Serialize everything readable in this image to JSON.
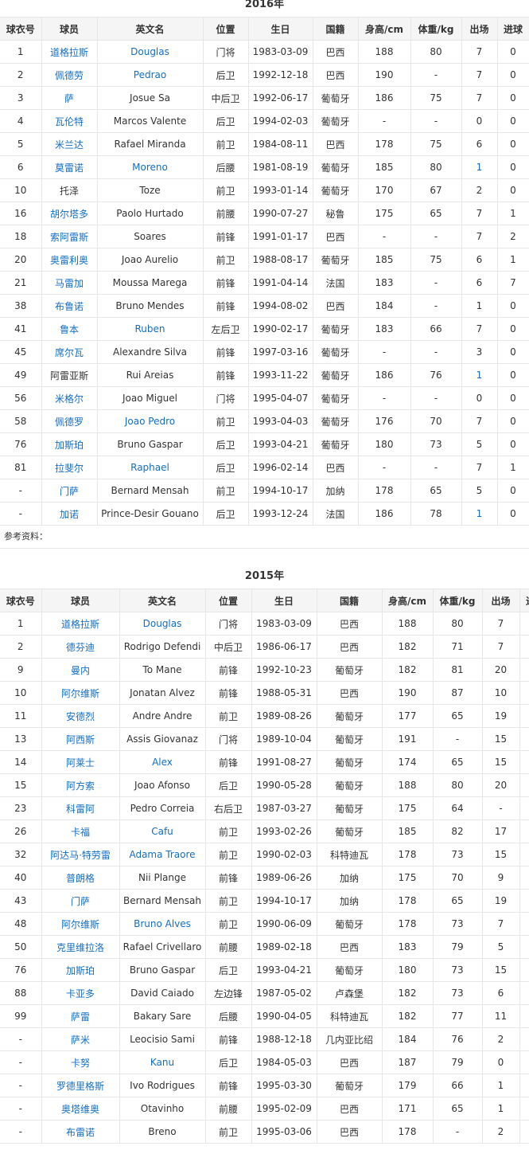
{
  "headers": [
    "球衣号",
    "球员",
    "英文名",
    "位置",
    "生日",
    "国籍",
    "身高/cm",
    "体重/kg",
    "出场",
    "进球"
  ],
  "colors": {
    "link": "#136ec2",
    "text": "#333333",
    "header_bg": "#f5f5f5",
    "border": "#e6e6e6"
  },
  "reference_label": "参考资料：",
  "table2016": {
    "title": "2016年",
    "rows": [
      {
        "cells": [
          "1",
          "道格拉斯",
          "Douglas",
          "门将",
          "1983-03-09",
          "巴西",
          "188",
          "80",
          "7",
          "0"
        ],
        "links": [
          1,
          2
        ]
      },
      {
        "cells": [
          "2",
          "佩德劳",
          "Pedrao",
          "后卫",
          "1992-12-18",
          "巴西",
          "190",
          "-",
          "7",
          "0"
        ],
        "links": [
          1,
          2
        ]
      },
      {
        "cells": [
          "3",
          "萨",
          "Josue Sa",
          "中后卫",
          "1992-06-17",
          "葡萄牙",
          "186",
          "75",
          "7",
          "0"
        ],
        "links": [
          1
        ]
      },
      {
        "cells": [
          "4",
          "瓦伦特",
          "Marcos Valente",
          "后卫",
          "1994-02-03",
          "葡萄牙",
          "-",
          "-",
          "0",
          "0"
        ],
        "links": [
          1
        ]
      },
      {
        "cells": [
          "5",
          "米兰达",
          "Rafael Miranda",
          "前卫",
          "1984-08-11",
          "巴西",
          "178",
          "75",
          "6",
          "0"
        ],
        "links": [
          1
        ]
      },
      {
        "cells": [
          "6",
          "莫雷诺",
          "Moreno",
          "后腰",
          "1981-08-19",
          "葡萄牙",
          "185",
          "80",
          "1",
          "0"
        ],
        "links": [
          1,
          2,
          8
        ]
      },
      {
        "cells": [
          "10",
          "托泽",
          "Toze",
          "前卫",
          "1993-01-14",
          "葡萄牙",
          "170",
          "67",
          "2",
          "0"
        ],
        "links": []
      },
      {
        "cells": [
          "16",
          "胡尔塔多",
          "Paolo Hurtado",
          "前腰",
          "1990-07-27",
          "秘鲁",
          "175",
          "65",
          "7",
          "1"
        ],
        "links": [
          1
        ]
      },
      {
        "cells": [
          "18",
          "索阿雷斯",
          "Soares",
          "前锋",
          "1991-01-17",
          "巴西",
          "-",
          "-",
          "7",
          "2"
        ],
        "links": [
          1
        ]
      },
      {
        "cells": [
          "20",
          "奥雷利奥",
          "Joao Aurelio",
          "前卫",
          "1988-08-17",
          "葡萄牙",
          "185",
          "75",
          "6",
          "1"
        ],
        "links": [
          1
        ]
      },
      {
        "cells": [
          "21",
          "马雷加",
          "Moussa Marega",
          "前锋",
          "1991-04-14",
          "法国",
          "183",
          "-",
          "6",
          "7"
        ],
        "links": [
          1
        ]
      },
      {
        "cells": [
          "38",
          "布鲁诺",
          "Bruno Mendes",
          "前锋",
          "1994-08-02",
          "巴西",
          "184",
          "-",
          "1",
          "0"
        ],
        "links": [
          1
        ]
      },
      {
        "cells": [
          "41",
          "鲁本",
          "Ruben",
          "左后卫",
          "1990-02-17",
          "葡萄牙",
          "183",
          "66",
          "7",
          "0"
        ],
        "links": [
          1,
          2
        ]
      },
      {
        "cells": [
          "45",
          "席尔瓦",
          "Alexandre Silva",
          "前锋",
          "1997-03-16",
          "葡萄牙",
          "-",
          "-",
          "3",
          "0"
        ],
        "links": [
          1
        ]
      },
      {
        "cells": [
          "49",
          "阿雷亚斯",
          "Rui Areias",
          "前锋",
          "1993-11-22",
          "葡萄牙",
          "186",
          "76",
          "1",
          "0"
        ],
        "links": [
          8
        ]
      },
      {
        "cells": [
          "56",
          "米格尔",
          "Joao Miguel",
          "门将",
          "1995-04-07",
          "葡萄牙",
          "-",
          "-",
          "0",
          "0"
        ],
        "links": [
          1
        ]
      },
      {
        "cells": [
          "58",
          "佩德罗",
          "Joao Pedro",
          "前卫",
          "1993-04-03",
          "葡萄牙",
          "176",
          "70",
          "7",
          "0"
        ],
        "links": [
          1,
          2
        ]
      },
      {
        "cells": [
          "76",
          "加斯珀",
          "Bruno Gaspar",
          "后卫",
          "1993-04-21",
          "葡萄牙",
          "180",
          "73",
          "5",
          "0"
        ],
        "links": [
          1
        ]
      },
      {
        "cells": [
          "81",
          "拉斐尔",
          "Raphael",
          "后卫",
          "1996-02-14",
          "巴西",
          "-",
          "-",
          "7",
          "1"
        ],
        "links": [
          1,
          2
        ]
      },
      {
        "cells": [
          "-",
          "门萨",
          "Bernard Mensah",
          "前卫",
          "1994-10-17",
          "加纳",
          "178",
          "65",
          "5",
          "0"
        ],
        "links": [
          1
        ]
      },
      {
        "cells": [
          "-",
          "加诺",
          "Prince-Desir Gouano",
          "后卫",
          "1993-12-24",
          "法国",
          "186",
          "78",
          "1",
          "0"
        ],
        "links": [
          1,
          8
        ]
      }
    ]
  },
  "table2015": {
    "title": "2015年",
    "rows": [
      {
        "cells": [
          "1",
          "道格拉斯",
          "Douglas",
          "门将",
          "1983-03-09",
          "巴西",
          "188",
          "80",
          "7"
        ],
        "links": [
          1,
          2
        ]
      },
      {
        "cells": [
          "2",
          "德芬迪",
          "Rodrigo Defendi",
          "中后卫",
          "1986-06-17",
          "巴西",
          "182",
          "71",
          "7"
        ],
        "links": [
          1
        ]
      },
      {
        "cells": [
          "9",
          "曼内",
          "To Mane",
          "前锋",
          "1992-10-23",
          "葡萄牙",
          "182",
          "81",
          "20"
        ],
        "links": [
          1
        ]
      },
      {
        "cells": [
          "10",
          "阿尔维斯",
          "Jonatan Alvez",
          "前锋",
          "1988-05-31",
          "巴西",
          "190",
          "87",
          "10"
        ],
        "links": [
          1
        ]
      },
      {
        "cells": [
          "11",
          "安德烈",
          "Andre Andre",
          "前卫",
          "1989-08-26",
          "葡萄牙",
          "177",
          "65",
          "19"
        ],
        "links": [
          1
        ]
      },
      {
        "cells": [
          "13",
          "阿西斯",
          "Assis Giovanaz",
          "门将",
          "1989-10-04",
          "葡萄牙",
          "191",
          "-",
          "15"
        ],
        "links": [
          1
        ]
      },
      {
        "cells": [
          "14",
          "阿莱士",
          "Alex",
          "前锋",
          "1991-08-27",
          "葡萄牙",
          "174",
          "65",
          "15"
        ],
        "links": [
          1,
          2
        ]
      },
      {
        "cells": [
          "15",
          "阿方索",
          "Joao Afonso",
          "后卫",
          "1990-05-28",
          "葡萄牙",
          "188",
          "80",
          "20"
        ],
        "links": [
          1
        ]
      },
      {
        "cells": [
          "23",
          "科雷阿",
          "Pedro Correia",
          "右后卫",
          "1987-03-27",
          "葡萄牙",
          "175",
          "64",
          "-"
        ],
        "links": [
          1
        ]
      },
      {
        "cells": [
          "26",
          "卡福",
          "Cafu",
          "前卫",
          "1993-02-26",
          "葡萄牙",
          "185",
          "82",
          "17"
        ],
        "links": [
          1,
          2
        ]
      },
      {
        "cells": [
          "32",
          "阿达马·特劳雷",
          "Adama Traore",
          "前卫",
          "1990-02-03",
          "科特迪瓦",
          "178",
          "73",
          "15"
        ],
        "links": [
          1,
          2
        ]
      },
      {
        "cells": [
          "40",
          "普朗格",
          "Nii Plange",
          "前锋",
          "1989-06-26",
          "加纳",
          "175",
          "70",
          "9"
        ],
        "links": [
          1
        ]
      },
      {
        "cells": [
          "43",
          "门萨",
          "Bernard Mensah",
          "前卫",
          "1994-10-17",
          "加纳",
          "178",
          "65",
          "19"
        ],
        "links": [
          1
        ]
      },
      {
        "cells": [
          "48",
          "阿尔维斯",
          "Bruno Alves",
          "前卫",
          "1990-06-09",
          "葡萄牙",
          "178",
          "73",
          "7"
        ],
        "links": [
          1,
          2
        ]
      },
      {
        "cells": [
          "50",
          "克里维拉洛",
          "Rafael Crivellaro",
          "前腰",
          "1989-02-18",
          "巴西",
          "183",
          "79",
          "5"
        ],
        "links": [
          1
        ]
      },
      {
        "cells": [
          "76",
          "加斯珀",
          "Bruno Gaspar",
          "后卫",
          "1993-04-21",
          "葡萄牙",
          "180",
          "73",
          "15"
        ],
        "links": [
          1
        ]
      },
      {
        "cells": [
          "88",
          "卡亚多",
          "David Caiado",
          "左边锋",
          "1987-05-02",
          "卢森堡",
          "182",
          "73",
          "6"
        ],
        "links": [
          1
        ]
      },
      {
        "cells": [
          "99",
          "萨雷",
          "Bakary Sare",
          "后腰",
          "1990-04-05",
          "科特迪瓦",
          "182",
          "77",
          "11"
        ],
        "links": [
          1
        ]
      },
      {
        "cells": [
          "-",
          "萨米",
          "Leocisio Sami",
          "前锋",
          "1988-12-18",
          "几内亚比绍",
          "184",
          "76",
          "2"
        ],
        "links": [
          1
        ]
      },
      {
        "cells": [
          "-",
          "卡努",
          "Kanu",
          "后卫",
          "1984-05-03",
          "巴西",
          "187",
          "79",
          "0"
        ],
        "links": [
          1,
          2
        ]
      },
      {
        "cells": [
          "-",
          "罗德里格斯",
          "Ivo Rodrigues",
          "前锋",
          "1995-03-30",
          "葡萄牙",
          "179",
          "66",
          "1"
        ],
        "links": [
          1
        ]
      },
      {
        "cells": [
          "-",
          "奥塔维奥",
          "Otavinho",
          "前腰",
          "1995-02-09",
          "巴西",
          "171",
          "65",
          "1"
        ],
        "links": [
          1
        ]
      },
      {
        "cells": [
          "-",
          "布雷诺",
          "Breno",
          "前卫",
          "1995-03-06",
          "巴西",
          "178",
          "-",
          "2"
        ],
        "links": [
          1
        ]
      }
    ]
  }
}
